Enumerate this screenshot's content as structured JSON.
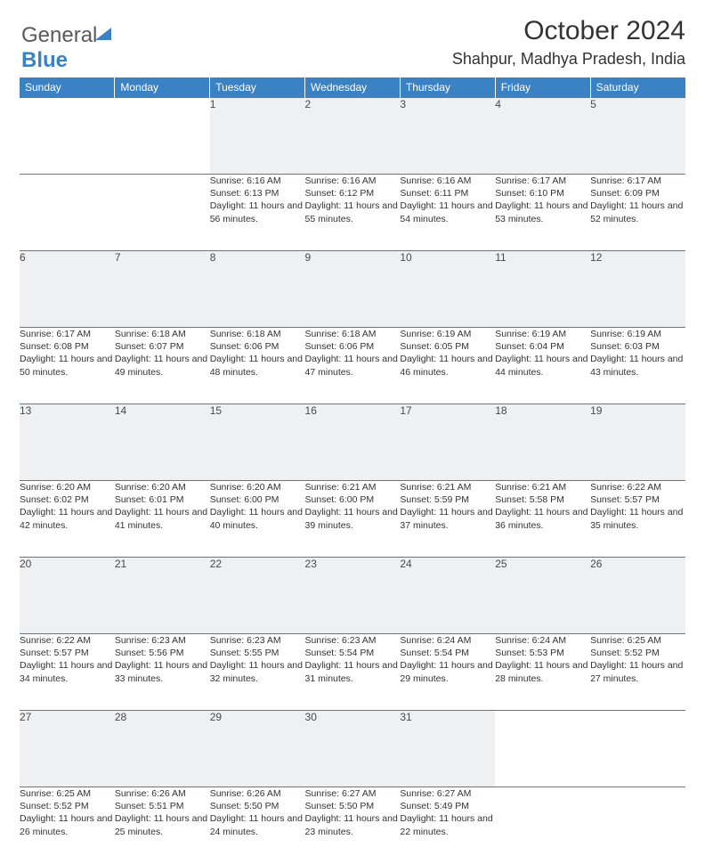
{
  "logo": {
    "text1": "General",
    "text2": "Blue"
  },
  "header": {
    "month_year": "October 2024",
    "location": "Shahpur, Madhya Pradesh, India"
  },
  "colors": {
    "header_bg": "#3b82c4",
    "header_text": "#ffffff",
    "daynum_bg": "#eef0f2",
    "border": "#3b82c4",
    "body_text": "#333333"
  },
  "day_labels": [
    "Sunday",
    "Monday",
    "Tuesday",
    "Wednesday",
    "Thursday",
    "Friday",
    "Saturday"
  ],
  "weeks": [
    [
      null,
      null,
      {
        "n": "1",
        "sr": "Sunrise: 6:16 AM",
        "ss": "Sunset: 6:13 PM",
        "dl": "Daylight: 11 hours and 56 minutes."
      },
      {
        "n": "2",
        "sr": "Sunrise: 6:16 AM",
        "ss": "Sunset: 6:12 PM",
        "dl": "Daylight: 11 hours and 55 minutes."
      },
      {
        "n": "3",
        "sr": "Sunrise: 6:16 AM",
        "ss": "Sunset: 6:11 PM",
        "dl": "Daylight: 11 hours and 54 minutes."
      },
      {
        "n": "4",
        "sr": "Sunrise: 6:17 AM",
        "ss": "Sunset: 6:10 PM",
        "dl": "Daylight: 11 hours and 53 minutes."
      },
      {
        "n": "5",
        "sr": "Sunrise: 6:17 AM",
        "ss": "Sunset: 6:09 PM",
        "dl": "Daylight: 11 hours and 52 minutes."
      }
    ],
    [
      {
        "n": "6",
        "sr": "Sunrise: 6:17 AM",
        "ss": "Sunset: 6:08 PM",
        "dl": "Daylight: 11 hours and 50 minutes."
      },
      {
        "n": "7",
        "sr": "Sunrise: 6:18 AM",
        "ss": "Sunset: 6:07 PM",
        "dl": "Daylight: 11 hours and 49 minutes."
      },
      {
        "n": "8",
        "sr": "Sunrise: 6:18 AM",
        "ss": "Sunset: 6:06 PM",
        "dl": "Daylight: 11 hours and 48 minutes."
      },
      {
        "n": "9",
        "sr": "Sunrise: 6:18 AM",
        "ss": "Sunset: 6:06 PM",
        "dl": "Daylight: 11 hours and 47 minutes."
      },
      {
        "n": "10",
        "sr": "Sunrise: 6:19 AM",
        "ss": "Sunset: 6:05 PM",
        "dl": "Daylight: 11 hours and 46 minutes."
      },
      {
        "n": "11",
        "sr": "Sunrise: 6:19 AM",
        "ss": "Sunset: 6:04 PM",
        "dl": "Daylight: 11 hours and 44 minutes."
      },
      {
        "n": "12",
        "sr": "Sunrise: 6:19 AM",
        "ss": "Sunset: 6:03 PM",
        "dl": "Daylight: 11 hours and 43 minutes."
      }
    ],
    [
      {
        "n": "13",
        "sr": "Sunrise: 6:20 AM",
        "ss": "Sunset: 6:02 PM",
        "dl": "Daylight: 11 hours and 42 minutes."
      },
      {
        "n": "14",
        "sr": "Sunrise: 6:20 AM",
        "ss": "Sunset: 6:01 PM",
        "dl": "Daylight: 11 hours and 41 minutes."
      },
      {
        "n": "15",
        "sr": "Sunrise: 6:20 AM",
        "ss": "Sunset: 6:00 PM",
        "dl": "Daylight: 11 hours and 40 minutes."
      },
      {
        "n": "16",
        "sr": "Sunrise: 6:21 AM",
        "ss": "Sunset: 6:00 PM",
        "dl": "Daylight: 11 hours and 39 minutes."
      },
      {
        "n": "17",
        "sr": "Sunrise: 6:21 AM",
        "ss": "Sunset: 5:59 PM",
        "dl": "Daylight: 11 hours and 37 minutes."
      },
      {
        "n": "18",
        "sr": "Sunrise: 6:21 AM",
        "ss": "Sunset: 5:58 PM",
        "dl": "Daylight: 11 hours and 36 minutes."
      },
      {
        "n": "19",
        "sr": "Sunrise: 6:22 AM",
        "ss": "Sunset: 5:57 PM",
        "dl": "Daylight: 11 hours and 35 minutes."
      }
    ],
    [
      {
        "n": "20",
        "sr": "Sunrise: 6:22 AM",
        "ss": "Sunset: 5:57 PM",
        "dl": "Daylight: 11 hours and 34 minutes."
      },
      {
        "n": "21",
        "sr": "Sunrise: 6:23 AM",
        "ss": "Sunset: 5:56 PM",
        "dl": "Daylight: 11 hours and 33 minutes."
      },
      {
        "n": "22",
        "sr": "Sunrise: 6:23 AM",
        "ss": "Sunset: 5:55 PM",
        "dl": "Daylight: 11 hours and 32 minutes."
      },
      {
        "n": "23",
        "sr": "Sunrise: 6:23 AM",
        "ss": "Sunset: 5:54 PM",
        "dl": "Daylight: 11 hours and 31 minutes."
      },
      {
        "n": "24",
        "sr": "Sunrise: 6:24 AM",
        "ss": "Sunset: 5:54 PM",
        "dl": "Daylight: 11 hours and 29 minutes."
      },
      {
        "n": "25",
        "sr": "Sunrise: 6:24 AM",
        "ss": "Sunset: 5:53 PM",
        "dl": "Daylight: 11 hours and 28 minutes."
      },
      {
        "n": "26",
        "sr": "Sunrise: 6:25 AM",
        "ss": "Sunset: 5:52 PM",
        "dl": "Daylight: 11 hours and 27 minutes."
      }
    ],
    [
      {
        "n": "27",
        "sr": "Sunrise: 6:25 AM",
        "ss": "Sunset: 5:52 PM",
        "dl": "Daylight: 11 hours and 26 minutes."
      },
      {
        "n": "28",
        "sr": "Sunrise: 6:26 AM",
        "ss": "Sunset: 5:51 PM",
        "dl": "Daylight: 11 hours and 25 minutes."
      },
      {
        "n": "29",
        "sr": "Sunrise: 6:26 AM",
        "ss": "Sunset: 5:50 PM",
        "dl": "Daylight: 11 hours and 24 minutes."
      },
      {
        "n": "30",
        "sr": "Sunrise: 6:27 AM",
        "ss": "Sunset: 5:50 PM",
        "dl": "Daylight: 11 hours and 23 minutes."
      },
      {
        "n": "31",
        "sr": "Sunrise: 6:27 AM",
        "ss": "Sunset: 5:49 PM",
        "dl": "Daylight: 11 hours and 22 minutes."
      },
      null,
      null
    ]
  ]
}
